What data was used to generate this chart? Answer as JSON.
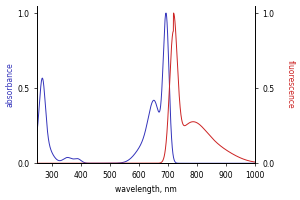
{
  "xlabel": "wavelength, nm",
  "ylabel_left": "absorbance",
  "ylabel_right": "fluorescence",
  "xlim": [
    250,
    1000
  ],
  "ylim": [
    0,
    1.05
  ],
  "color_excitation": "#3333bb",
  "color_emission": "#cc2222",
  "bg_color": "#ffffff",
  "yticks": [
    0,
    0.5,
    1.0
  ],
  "xticks": [
    300,
    400,
    500,
    600,
    700,
    800,
    900,
    1000
  ],
  "xlabel_fontsize": 5.5,
  "ylabel_fontsize": 5.5,
  "tick_fontsize": 5.5,
  "linewidth": 0.7
}
